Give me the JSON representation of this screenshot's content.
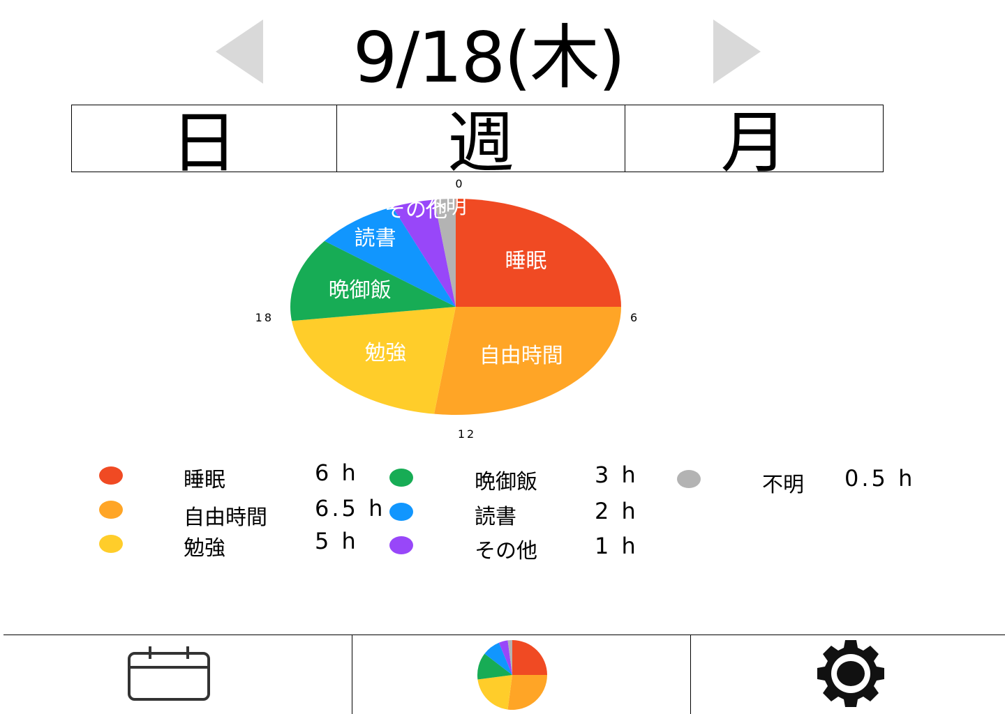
{
  "header": {
    "date": "9/18(木)",
    "prev_icon": "triangle-left-icon",
    "next_icon": "triangle-right-icon"
  },
  "period_tabs": {
    "day": "日",
    "week": "週",
    "month": "月"
  },
  "colors": {
    "sleep": "#F04A23",
    "free": "#FFA526",
    "study": "#FFCD2A",
    "dinner": "#17AC55",
    "reading": "#1196FE",
    "other": "#9847F9",
    "unknown": "#B3B3B3",
    "arrow": "#D9D9D9"
  },
  "chart_data": {
    "type": "pie",
    "unit": "h",
    "total_hours": 24,
    "hour_ticks": [
      "0",
      "6",
      "12",
      "18"
    ],
    "slices": [
      {
        "key": "sleep",
        "label": "睡眠",
        "value": 6,
        "value_text": "6 h",
        "color": "#F04A23"
      },
      {
        "key": "free",
        "label": "自由時間",
        "value": 6.5,
        "value_text": "6.5 h",
        "color": "#FFA526"
      },
      {
        "key": "study",
        "label": "勉強",
        "value": 5,
        "value_text": "5 h",
        "color": "#FFCD2A"
      },
      {
        "key": "dinner",
        "label": "晩御飯",
        "value": 3,
        "value_text": "3 h",
        "color": "#17AC55"
      },
      {
        "key": "reading",
        "label": "読書",
        "value": 2,
        "value_text": "2 h",
        "color": "#1196FE"
      },
      {
        "key": "other",
        "label": "その他",
        "value": 1,
        "value_text": "1 h",
        "color": "#9847F9"
      },
      {
        "key": "unknown",
        "label": "不明",
        "value": 0.5,
        "value_text": "0.5 h",
        "color": "#B3B3B3"
      }
    ]
  },
  "bottom_nav": {
    "calendar_icon": "calendar-icon",
    "stats_icon": "pie-chart-icon",
    "settings_icon": "gear-icon"
  }
}
